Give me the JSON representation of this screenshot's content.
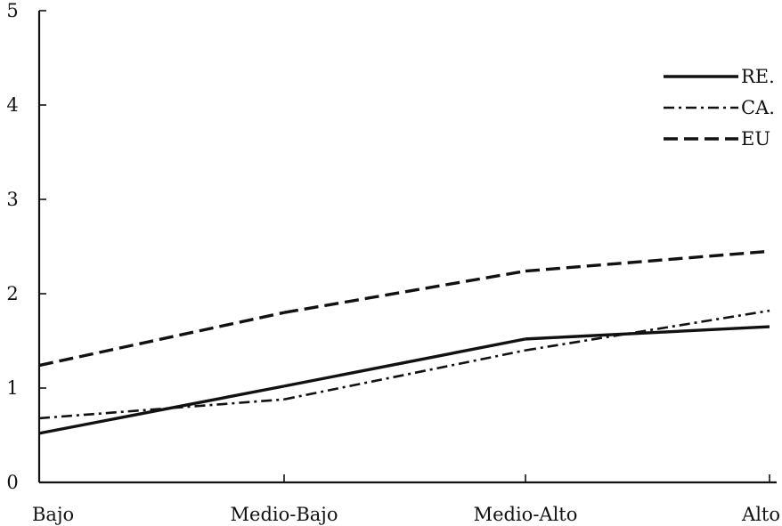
{
  "chart_data": {
    "type": "line",
    "categories": [
      "Bajo",
      "Medio-Bajo",
      "Medio-Alto",
      "Alto"
    ],
    "series": [
      {
        "name": "RE",
        "values": [
          0.52,
          1.02,
          1.52,
          1.65
        ],
        "style": "solid",
        "color": "#111111"
      },
      {
        "name": "CA",
        "values": [
          0.68,
          0.88,
          1.4,
          1.82
        ],
        "style": "dash-dot",
        "color": "#111111"
      },
      {
        "name": "EU",
        "values": [
          1.24,
          1.8,
          2.24,
          2.45
        ],
        "style": "dashed",
        "color": "#111111"
      }
    ],
    "ylim": [
      0,
      5
    ],
    "yticks": [
      "0",
      "1",
      "2",
      "3",
      "4",
      "5"
    ],
    "grid": false,
    "legend_position": "top-right",
    "legend_labels": [
      "RE.",
      "CA.",
      "EU"
    ]
  }
}
